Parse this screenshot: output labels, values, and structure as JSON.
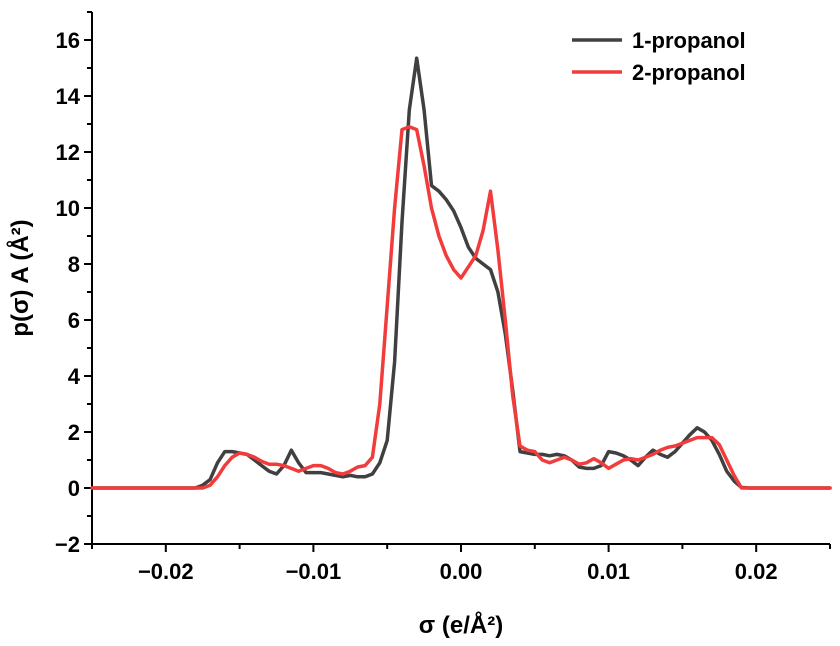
{
  "chart_data": {
    "type": "line",
    "title": "",
    "xlabel": "σ  (e/Å²)",
    "ylabel": "p(σ) A (Å²)",
    "xlim": [
      -0.025,
      0.025
    ],
    "ylim": [
      -2,
      17
    ],
    "xticks": [
      -0.02,
      -0.01,
      0.0,
      0.01,
      0.02
    ],
    "xtick_labels": [
      "−0.02",
      "−0.01",
      "0.00",
      "0.01",
      "0.02"
    ],
    "yticks": [
      -2,
      0,
      2,
      4,
      6,
      8,
      10,
      12,
      14,
      16
    ],
    "ytick_labels": [
      "−2",
      "0",
      "2",
      "4",
      "6",
      "8",
      "10",
      "12",
      "14",
      "16"
    ],
    "grid": false,
    "legend_position": "top-right",
    "series": [
      {
        "name": "1-propanol",
        "color": "#404040",
        "x": [
          -0.025,
          -0.018,
          -0.0175,
          -0.017,
          -0.0165,
          -0.016,
          -0.0155,
          -0.015,
          -0.0145,
          -0.014,
          -0.0135,
          -0.013,
          -0.0125,
          -0.012,
          -0.0115,
          -0.011,
          -0.0105,
          -0.01,
          -0.0095,
          -0.009,
          -0.0085,
          -0.008,
          -0.0075,
          -0.007,
          -0.0065,
          -0.006,
          -0.0055,
          -0.005,
          -0.0045,
          -0.004,
          -0.0035,
          -0.003,
          -0.0025,
          -0.002,
          -0.0015,
          -0.001,
          -0.0005,
          0.0,
          0.0005,
          0.001,
          0.0015,
          0.002,
          0.0025,
          0.003,
          0.0035,
          0.004,
          0.0045,
          0.005,
          0.0055,
          0.006,
          0.0065,
          0.007,
          0.0075,
          0.008,
          0.0085,
          0.009,
          0.0095,
          0.01,
          0.0105,
          0.011,
          0.0115,
          0.012,
          0.0125,
          0.013,
          0.0135,
          0.014,
          0.0145,
          0.015,
          0.0155,
          0.016,
          0.0165,
          0.017,
          0.0175,
          0.018,
          0.0185,
          0.019,
          0.0195,
          0.025
        ],
        "y": [
          0.0,
          0.0,
          0.1,
          0.3,
          0.9,
          1.3,
          1.3,
          1.25,
          1.2,
          1.0,
          0.8,
          0.6,
          0.5,
          0.8,
          1.35,
          0.9,
          0.55,
          0.55,
          0.55,
          0.5,
          0.45,
          0.4,
          0.45,
          0.4,
          0.4,
          0.5,
          0.9,
          1.7,
          4.5,
          9.5,
          13.5,
          15.35,
          13.5,
          10.8,
          10.6,
          10.3,
          9.9,
          9.3,
          8.6,
          8.2,
          8.0,
          7.8,
          7.0,
          5.5,
          3.5,
          1.3,
          1.25,
          1.2,
          1.2,
          1.15,
          1.2,
          1.15,
          1.0,
          0.75,
          0.7,
          0.7,
          0.8,
          1.3,
          1.25,
          1.15,
          1.0,
          0.8,
          1.1,
          1.35,
          1.2,
          1.1,
          1.3,
          1.6,
          1.9,
          2.15,
          2.0,
          1.7,
          1.2,
          0.6,
          0.25,
          0.02,
          0.0,
          0.0
        ]
      },
      {
        "name": "2-propanol",
        "color": "#f23c3c",
        "x": [
          -0.025,
          -0.0175,
          -0.017,
          -0.0165,
          -0.016,
          -0.0155,
          -0.015,
          -0.0145,
          -0.014,
          -0.0135,
          -0.013,
          -0.0125,
          -0.012,
          -0.0115,
          -0.011,
          -0.0105,
          -0.01,
          -0.0095,
          -0.009,
          -0.0085,
          -0.008,
          -0.0075,
          -0.007,
          -0.0065,
          -0.006,
          -0.0055,
          -0.005,
          -0.0045,
          -0.004,
          -0.0035,
          -0.003,
          -0.0025,
          -0.002,
          -0.0015,
          -0.001,
          -0.0005,
          0.0,
          0.0005,
          0.001,
          0.0015,
          0.002,
          0.0025,
          0.003,
          0.0035,
          0.004,
          0.0045,
          0.005,
          0.0055,
          0.006,
          0.0065,
          0.007,
          0.0075,
          0.008,
          0.0085,
          0.009,
          0.0095,
          0.01,
          0.0105,
          0.011,
          0.0115,
          0.012,
          0.0125,
          0.013,
          0.0135,
          0.014,
          0.0145,
          0.015,
          0.0155,
          0.016,
          0.0165,
          0.017,
          0.0175,
          0.018,
          0.0185,
          0.019,
          0.025
        ],
        "y": [
          0.0,
          0.0,
          0.1,
          0.4,
          0.8,
          1.1,
          1.25,
          1.2,
          1.1,
          0.95,
          0.85,
          0.85,
          0.8,
          0.7,
          0.6,
          0.7,
          0.8,
          0.8,
          0.7,
          0.55,
          0.5,
          0.6,
          0.75,
          0.8,
          1.1,
          3.0,
          6.5,
          10.0,
          12.8,
          12.9,
          12.8,
          11.5,
          10.0,
          9.0,
          8.3,
          7.8,
          7.5,
          7.9,
          8.3,
          9.2,
          10.6,
          8.5,
          6.0,
          3.3,
          1.5,
          1.35,
          1.3,
          1.0,
          0.9,
          1.0,
          1.1,
          1.0,
          0.85,
          0.9,
          1.05,
          0.9,
          0.7,
          0.85,
          1.0,
          1.05,
          1.0,
          1.1,
          1.2,
          1.35,
          1.45,
          1.5,
          1.6,
          1.7,
          1.8,
          1.8,
          1.8,
          1.55,
          1.0,
          0.45,
          0.0,
          0.0
        ]
      }
    ]
  }
}
